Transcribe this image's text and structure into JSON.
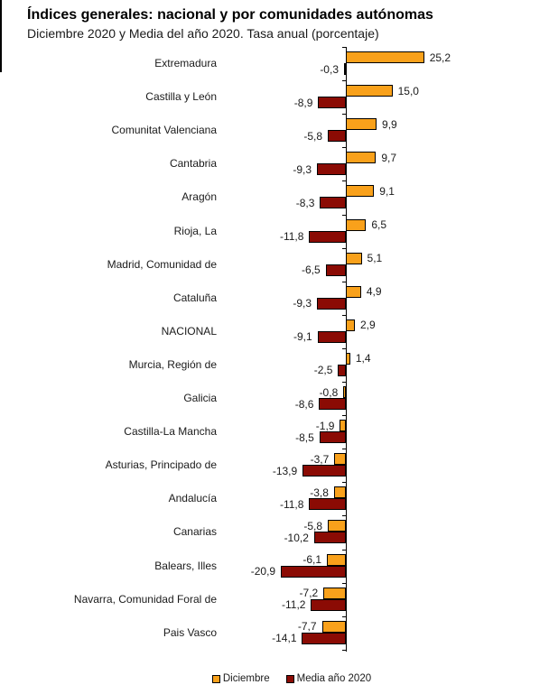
{
  "title": "Índices generales: nacional y por comunidades autónomas",
  "subtitle": "Diciembre 2020 y Media del año 2020. Tasa anual (porcentaje)",
  "colors": {
    "december_bar": "#F9A11B",
    "media_bar": "#8B0B04",
    "bar_border": "#000000",
    "axis": "#000000"
  },
  "legend": {
    "items": [
      {
        "label": "Diciembre",
        "swatch": "december_bar"
      },
      {
        "label": "Media año 2020",
        "swatch": "media_bar"
      }
    ]
  },
  "chart_data": {
    "type": "bar",
    "orientation": "horizontal",
    "title": "Índices generales: nacional y por comunidades autónomas",
    "subtitle": "Diciembre 2020 y Media del año 2020. Tasa anual (porcentaje)",
    "unit": "percent (tasa anual)",
    "decimal_separator": ",",
    "value_labels_visible": true,
    "legend_position": "bottom",
    "axis": {
      "zero_line": true,
      "gridlines": false,
      "x_min": -25,
      "x_max": 30
    },
    "categories": [
      "Extremadura",
      "Castilla y León",
      "Comunitat Valenciana",
      "Cantabria",
      "Aragón",
      "Rioja, La",
      "Madrid, Comunidad de",
      "Cataluña",
      "NACIONAL",
      "Murcia, Región de",
      "Galicia",
      "Castilla-La Mancha",
      "Asturias, Principado de",
      "Andalucía",
      "Canarias",
      "Balears, Illes",
      "Navarra, Comunidad Foral de",
      "Pais Vasco"
    ],
    "series": [
      {
        "name": "Diciembre",
        "color": "#F9A11B",
        "values": [
          25.2,
          15.0,
          9.9,
          9.7,
          9.1,
          6.5,
          5.1,
          4.9,
          2.9,
          1.4,
          -0.8,
          -1.9,
          -3.7,
          -3.8,
          -5.8,
          -6.1,
          -7.2,
          -7.7
        ]
      },
      {
        "name": "Media año 2020",
        "color": "#8B0B04",
        "values": [
          -0.3,
          -8.9,
          -5.8,
          -9.3,
          -8.3,
          -11.8,
          -6.5,
          -9.3,
          -9.1,
          -2.5,
          -8.6,
          -8.5,
          -13.9,
          -11.8,
          -10.2,
          -20.9,
          -11.2,
          -14.1
        ]
      }
    ]
  }
}
